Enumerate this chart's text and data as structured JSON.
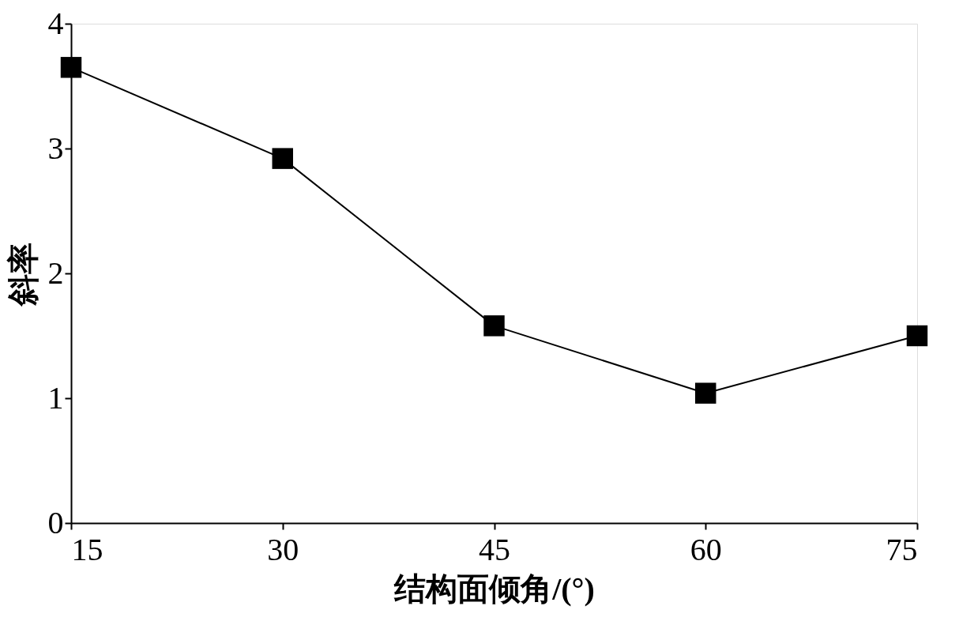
{
  "chart_data": {
    "type": "line",
    "xlabel": "结构面倾角/(°)",
    "ylabel": "斜率",
    "x": [
      15,
      30,
      45,
      60,
      75
    ],
    "series": [
      {
        "color": "#000000",
        "values": [
          3.65,
          2.92,
          1.58,
          1.04,
          1.5
        ]
      }
    ],
    "xlim": [
      15,
      75
    ],
    "xticks": [
      15,
      30,
      45,
      60,
      75
    ],
    "ylim": [
      0,
      4
    ],
    "yticks": [
      0,
      1,
      2,
      3,
      4
    ],
    "grid": false,
    "legend": false,
    "marker": "square",
    "line_style": "solid"
  }
}
